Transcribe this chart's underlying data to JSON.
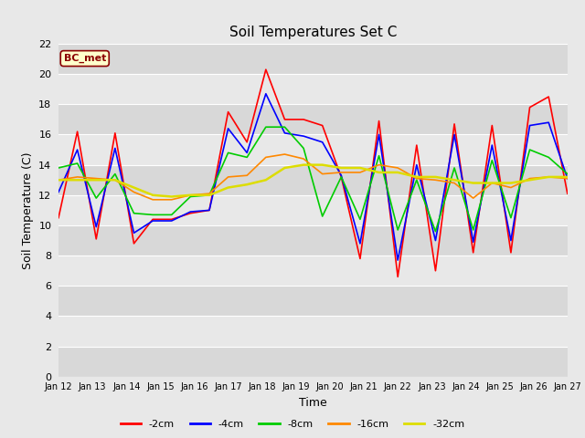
{
  "title": "Soil Temperatures Set C",
  "xlabel": "Time",
  "ylabel": "Soil Temperature (C)",
  "ylim": [
    0,
    22
  ],
  "yticks": [
    0,
    2,
    4,
    6,
    8,
    10,
    12,
    14,
    16,
    18,
    20,
    22
  ],
  "plot_bg_color": "#e8e8e8",
  "fig_bg_color": "#e8e8e8",
  "legend_bg_color": "#ffffff",
  "annotation_text": "BC_met",
  "annotation_bg": "#ffffcc",
  "annotation_border": "#8b0000",
  "annotation_text_color": "#8b0000",
  "series": {
    "-2cm": {
      "color": "#ff0000",
      "lw": 1.2
    },
    "-4cm": {
      "color": "#0000ff",
      "lw": 1.2
    },
    "-8cm": {
      "color": "#00cc00",
      "lw": 1.2
    },
    "-16cm": {
      "color": "#ff8800",
      "lw": 1.2
    },
    "-32cm": {
      "color": "#dddd00",
      "lw": 1.8
    }
  },
  "x_labels": [
    "Jan 12",
    "Jan 13",
    "Jan 14",
    "Jan 15",
    "Jan 16",
    "Jan 17",
    "Jan 18",
    "Jan 19",
    "Jan 20",
    "Jan 21",
    "Jan 22",
    "Jan 23",
    "Jan 24",
    "Jan 25",
    "Jan 26",
    "Jan 27"
  ],
  "data_2cm": [
    10.5,
    16.2,
    9.1,
    16.1,
    8.8,
    10.4,
    10.4,
    10.8,
    11.0,
    17.5,
    15.5,
    20.3,
    17.0,
    17.0,
    16.6,
    13.2,
    7.8,
    16.9,
    6.6,
    15.3,
    7.0,
    16.7,
    8.2,
    16.6,
    8.2,
    17.8,
    18.5,
    12.1
  ],
  "data_4cm": [
    12.2,
    15.0,
    9.9,
    15.1,
    9.5,
    10.3,
    10.3,
    10.9,
    11.0,
    16.4,
    14.8,
    18.7,
    16.1,
    15.9,
    15.5,
    13.3,
    8.8,
    16.0,
    7.7,
    14.0,
    9.0,
    16.0,
    8.9,
    15.3,
    9.0,
    16.6,
    16.8,
    13.1
  ],
  "data_8cm": [
    13.8,
    14.1,
    11.8,
    13.4,
    10.8,
    10.7,
    10.7,
    11.9,
    12.0,
    14.8,
    14.5,
    16.5,
    16.5,
    15.1,
    10.6,
    13.2,
    10.4,
    14.6,
    9.7,
    13.0,
    9.6,
    13.8,
    9.7,
    14.3,
    10.5,
    15.0,
    14.5,
    13.4
  ],
  "data_16cm": [
    13.0,
    13.2,
    13.1,
    13.0,
    12.2,
    11.7,
    11.7,
    12.0,
    12.1,
    13.2,
    13.3,
    14.5,
    14.7,
    14.4,
    13.4,
    13.5,
    13.5,
    14.0,
    13.8,
    13.1,
    13.0,
    12.8,
    11.8,
    12.8,
    12.5,
    13.1,
    13.2,
    13.1
  ],
  "data_32cm": [
    13.0,
    13.0,
    13.0,
    13.0,
    12.5,
    12.0,
    11.9,
    12.0,
    12.0,
    12.5,
    12.7,
    13.0,
    13.8,
    14.0,
    14.0,
    13.8,
    13.8,
    13.5,
    13.5,
    13.2,
    13.2,
    13.0,
    12.8,
    12.8,
    12.8,
    13.0,
    13.2,
    13.2
  ]
}
